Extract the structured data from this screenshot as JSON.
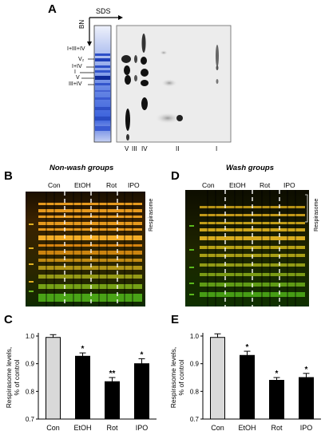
{
  "panels": {
    "A": {
      "label": "A",
      "sds_label": "SDS",
      "bn_label": "BN",
      "left_labels": [
        "I+III+IV",
        "V₂",
        "I+IV",
        "I",
        "V",
        "III+IV"
      ],
      "bottom_labels": [
        "V",
        "III",
        "IV",
        "II",
        "I"
      ]
    },
    "B": {
      "label": "B",
      "title": "Non-wash groups",
      "lanes": [
        "Con",
        "EtOH",
        "Rot",
        "IPO"
      ],
      "side_label": "Respirasome"
    },
    "D": {
      "label": "D",
      "title": "Wash groups",
      "lanes": [
        "Con",
        "EtOH",
        "Rot",
        "IPO"
      ],
      "side_label": "Respirasome"
    },
    "C": {
      "label": "C"
    },
    "E": {
      "label": "E"
    }
  },
  "colors": {
    "bar_control": "#d9d9d9",
    "bar_treatment": "#000000",
    "gel_orange": "#e88a10",
    "gel_green": "#4caa18",
    "blue_strip": "#3a5fd8"
  },
  "chart_data": [
    {
      "type": "bar",
      "panel": "C",
      "categories": [
        "Con",
        "EtOH",
        "Rot",
        "IPO"
      ],
      "values": [
        0.995,
        0.927,
        0.835,
        0.9
      ],
      "errors": [
        0.01,
        0.012,
        0.015,
        0.018
      ],
      "significance": [
        "",
        "*",
        "**",
        "*"
      ],
      "ylabel": "Respirasome levels, % of control",
      "ylim": [
        0.7,
        1.0
      ],
      "yticks": [
        "0.7",
        "0.8",
        "0.9",
        "1.0"
      ],
      "colors": [
        "#d9d9d9",
        "#000000",
        "#000000",
        "#000000"
      ]
    },
    {
      "type": "bar",
      "panel": "E",
      "categories": [
        "Con",
        "EtOH",
        "Rot",
        "IPO"
      ],
      "values": [
        0.995,
        0.93,
        0.84,
        0.85
      ],
      "errors": [
        0.013,
        0.015,
        0.01,
        0.015
      ],
      "significance": [
        "",
        "*",
        "*",
        "*"
      ],
      "ylabel": "Respirasome levels, % of control",
      "ylim": [
        0.7,
        1.0
      ],
      "yticks": [
        "0.7",
        "0.8",
        "0.9",
        "1.0"
      ],
      "colors": [
        "#d9d9d9",
        "#000000",
        "#000000",
        "#000000"
      ]
    }
  ]
}
